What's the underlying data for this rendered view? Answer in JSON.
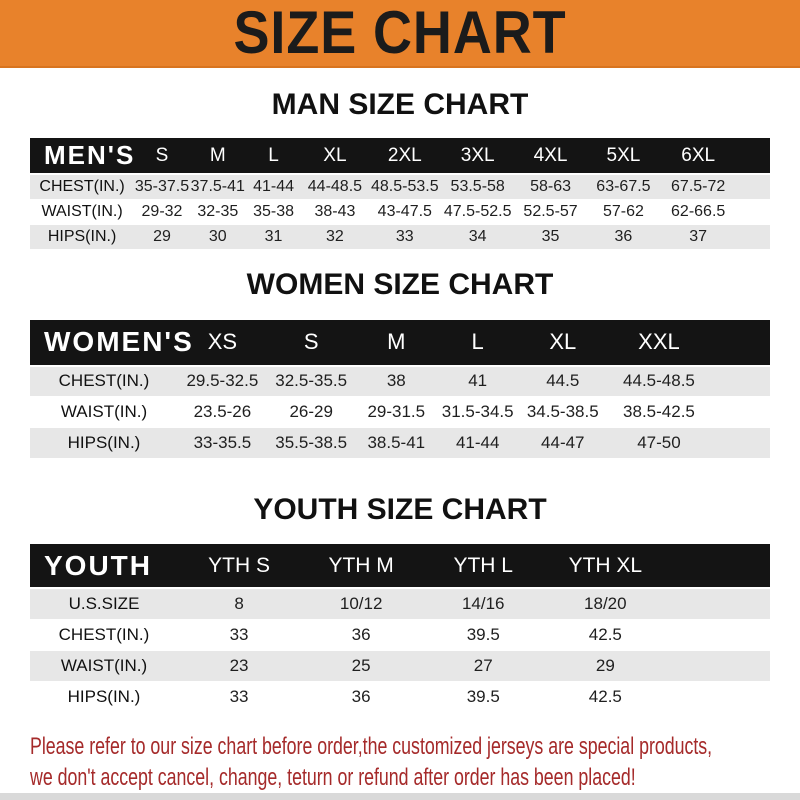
{
  "banner": {
    "title": "SIZE CHART",
    "bg_color": "#E8822B",
    "text_color": "#1B1B1B"
  },
  "sections": [
    {
      "heading": "MAN SIZE CHART",
      "table": {
        "corner_label": "MEN'S",
        "columns": [
          "S",
          "M",
          "L",
          "XL",
          "2XL",
          "3XL",
          "4XL",
          "5XL",
          "6XL"
        ],
        "rows": [
          {
            "label": "CHEST(IN.)",
            "values": [
              "35-37.5",
              "37.5-41",
              "41-44",
              "44-48.5",
              "48.5-53.5",
              "53.5-58",
              "58-63",
              "63-67.5",
              "67.5-72"
            ]
          },
          {
            "label": "WAIST(IN.)",
            "values": [
              "29-32",
              "32-35",
              "35-38",
              "38-43",
              "43-47.5",
              "47.5-52.5",
              "52.5-57",
              "57-62",
              "62-66.5"
            ]
          },
          {
            "label": "HIPS(IN.)",
            "values": [
              "29",
              "30",
              "31",
              "32",
              "33",
              "34",
              "35",
              "36",
              "37"
            ]
          }
        ]
      }
    },
    {
      "heading": "WOMEN SIZE CHART",
      "table": {
        "corner_label": "WOMEN'S",
        "columns": [
          "XS",
          "S",
          "M",
          "L",
          "XL",
          "XXL"
        ],
        "rows": [
          {
            "label": "CHEST(IN.)",
            "values": [
              "29.5-32.5",
              "32.5-35.5",
              "38",
              "41",
              "44.5",
              "44.5-48.5"
            ]
          },
          {
            "label": "WAIST(IN.)",
            "values": [
              "23.5-26",
              "26-29",
              "29-31.5",
              "31.5-34.5",
              "34.5-38.5",
              "38.5-42.5"
            ]
          },
          {
            "label": "HIPS(IN.)",
            "values": [
              "33-35.5",
              "35.5-38.5",
              "38.5-41",
              "41-44",
              "44-47",
              "47-50"
            ]
          }
        ]
      }
    },
    {
      "heading": "YOUTH SIZE CHART",
      "table": {
        "corner_label": "YOUTH",
        "columns": [
          "YTH S",
          "YTH M",
          "YTH L",
          "YTH XL"
        ],
        "rows": [
          {
            "label": "U.S.SIZE",
            "values": [
              "8",
              "10/12",
              "14/16",
              "18/20"
            ]
          },
          {
            "label": "CHEST(IN.)",
            "values": [
              "33",
              "36",
              "39.5",
              "42.5"
            ]
          },
          {
            "label": "WAIST(IN.)",
            "values": [
              "23",
              "25",
              "27",
              "29"
            ]
          },
          {
            "label": "HIPS(IN.)",
            "values": [
              "33",
              "36",
              "39.5",
              "42.5"
            ]
          }
        ]
      }
    }
  ],
  "note": {
    "line1": "Please refer to our size chart before order,the customized jerseys are special products,",
    "line2": "we don't accept cancel, change, teturn or refund after order has been placed!",
    "color": "#A52A2A"
  },
  "colors": {
    "table_bar_bg": "#141414",
    "row_alt_bg": "#E7E7E7",
    "bottom_strip": "#D9D9D9"
  }
}
